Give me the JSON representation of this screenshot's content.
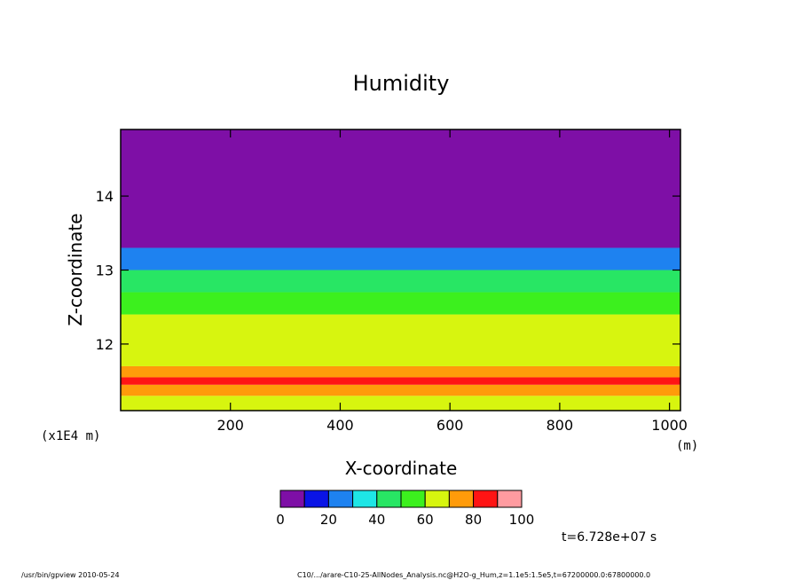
{
  "chart_data": {
    "type": "heatmap",
    "title": "Humidity",
    "xlabel": "X-coordinate",
    "ylabel": "Z-coordinate",
    "x_unit": "(m)",
    "y_unit": "(x1E4 m)",
    "xlim": [
      0,
      1020
    ],
    "ylim": [
      11.1,
      14.9
    ],
    "x_ticks": [
      "200",
      "400",
      "600",
      "800",
      "1000"
    ],
    "y_ticks": [
      "12",
      "13",
      "14"
    ],
    "colorbar": {
      "levels": [
        0,
        10,
        20,
        30,
        40,
        50,
        60,
        70,
        80,
        90,
        100
      ],
      "tick_labels": [
        "0",
        "20",
        "40",
        "60",
        "80",
        "100"
      ],
      "colors": [
        "#7e0fa6",
        "#0a14e6",
        "#1e82f0",
        "#1ee6e6",
        "#28e664",
        "#3cf01e",
        "#d7f50f",
        "#ff9b0a",
        "#ff1414",
        "#ff9ba0"
      ]
    },
    "layers": [
      {
        "z_range": [
          11.1,
          11.3
        ],
        "humidity": 60
      },
      {
        "z_range": [
          11.3,
          11.45
        ],
        "humidity": 70
      },
      {
        "z_range": [
          11.45,
          11.55
        ],
        "humidity": 80
      },
      {
        "z_range": [
          11.55,
          11.7
        ],
        "humidity": 70
      },
      {
        "z_range": [
          11.7,
          12.4
        ],
        "humidity": 60
      },
      {
        "z_range": [
          12.4,
          12.7
        ],
        "humidity": 50
      },
      {
        "z_range": [
          12.7,
          13.0
        ],
        "humidity": 40
      },
      {
        "z_range": [
          13.0,
          13.3
        ],
        "humidity": 20
      },
      {
        "z_range": [
          13.3,
          14.9
        ],
        "humidity": 0
      }
    ],
    "time_label": "t=6.728e+07 s"
  },
  "footer": {
    "program": "/usr/bin/gpview   2010-05-24",
    "source": "C10/.../arare-C10-25-AllNodes_Analysis.nc@H2O-g_Hum,z=1.1e5:1.5e5,t=67200000.0:67800000.0"
  }
}
